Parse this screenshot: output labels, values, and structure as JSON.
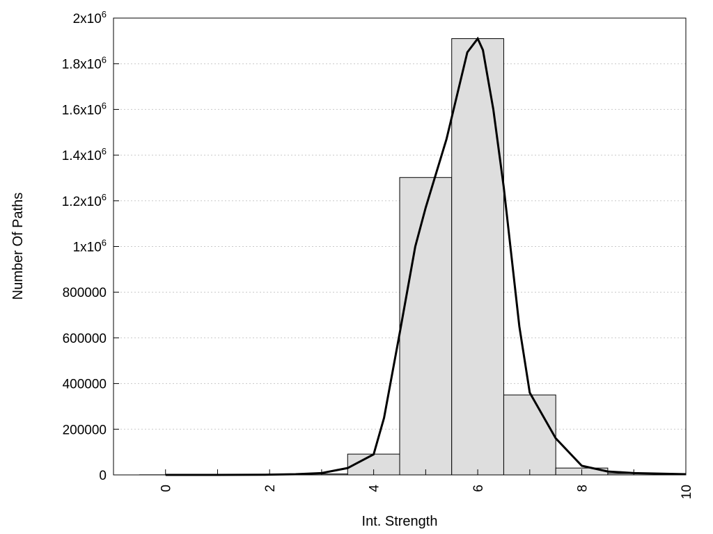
{
  "chart_data": {
    "type": "bar",
    "title": "",
    "xlabel": "Int. Strength",
    "ylabel": "Number Of Paths",
    "xlim": [
      -1,
      10
    ],
    "ylim": [
      0,
      2000000
    ],
    "grid": true,
    "x_ticks": [
      {
        "value": 0,
        "label": "0"
      },
      {
        "value": 2,
        "label": "2"
      },
      {
        "value": 4,
        "label": "4"
      },
      {
        "value": 6,
        "label": "6"
      },
      {
        "value": 8,
        "label": "8"
      },
      {
        "value": 10,
        "label": "10"
      }
    ],
    "y_ticks": [
      {
        "value": 0,
        "label": "0"
      },
      {
        "value": 200000,
        "label": "200000"
      },
      {
        "value": 400000,
        "label": "400000"
      },
      {
        "value": 600000,
        "label": "600000"
      },
      {
        "value": 800000,
        "label": "800000"
      },
      {
        "value": 1000000,
        "label": "1x10",
        "exp": "6"
      },
      {
        "value": 1200000,
        "label": "1.2x10",
        "exp": "6"
      },
      {
        "value": 1400000,
        "label": "1.4x10",
        "exp": "6"
      },
      {
        "value": 1600000,
        "label": "1.6x10",
        "exp": "6"
      },
      {
        "value": 1800000,
        "label": "1.8x10",
        "exp": "6"
      },
      {
        "value": 2000000,
        "label": "2x10",
        "exp": "6"
      }
    ],
    "bar_color": "#dedede",
    "bars": {
      "x": [
        0,
        1,
        2,
        3,
        4,
        5,
        6,
        7,
        8,
        9,
        10
      ],
      "values": [
        500,
        500,
        1000,
        4000,
        91000,
        1302000,
        1910000,
        350000,
        30000,
        6000,
        2000
      ]
    },
    "fit_curve": {
      "x": [
        0,
        1,
        2,
        2.5,
        3,
        3.5,
        4,
        4.2,
        4.5,
        4.8,
        5,
        5.4,
        5.8,
        6,
        6.1,
        6.3,
        6.5,
        6.8,
        7,
        7.5,
        8,
        8.5,
        9,
        10
      ],
      "y": [
        0,
        0,
        1000,
        3000,
        8000,
        30000,
        90000,
        250000,
        620000,
        1000000,
        1170000,
        1470000,
        1850000,
        1910000,
        1860000,
        1600000,
        1260000,
        650000,
        360000,
        160000,
        40000,
        15000,
        8000,
        3000
      ]
    }
  }
}
